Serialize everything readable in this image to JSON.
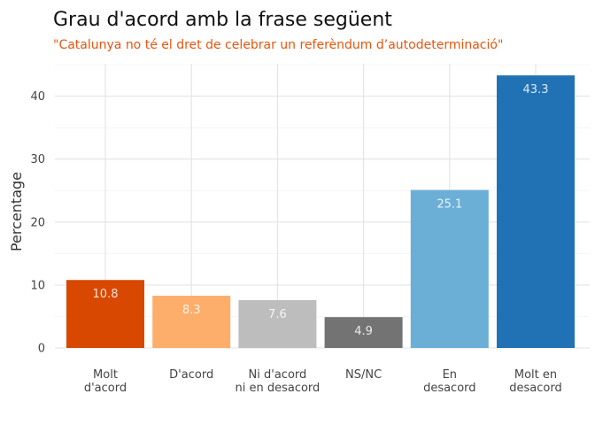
{
  "chart_data": {
    "type": "bar",
    "title": "Grau d'acord amb la frase següent",
    "subtitle": "\"Catalunya no té el dret de celebrar un referèndum d’autodeterminació\"",
    "ylabel": "Percentage",
    "xlabel": "",
    "ylim": [
      0,
      45
    ],
    "yticks": [
      0,
      10,
      20,
      30,
      40
    ],
    "grid": true,
    "categories": [
      [
        "Molt",
        "d'acord"
      ],
      [
        "D'acord"
      ],
      [
        "Ni d'acord",
        "ni en desacord"
      ],
      [
        "NS/NC"
      ],
      [
        "En",
        "desacord"
      ],
      [
        "Molt en",
        "desacord"
      ]
    ],
    "values": [
      10.8,
      8.3,
      7.6,
      4.9,
      25.1,
      43.3
    ],
    "data_labels": [
      "10.8",
      "8.3",
      "7.6",
      "4.9",
      "25.1",
      "43.3"
    ],
    "colors": [
      "#d94801",
      "#fdae6b",
      "#bdbdbd",
      "#737373",
      "#6baed6",
      "#2171b5"
    ],
    "subtitle_color": "#e6550d"
  }
}
